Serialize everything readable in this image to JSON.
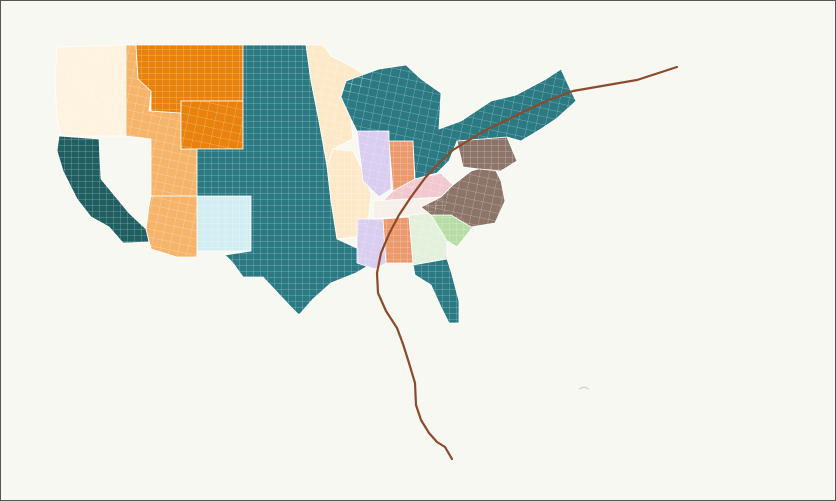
{
  "map": {
    "background": "#f7f8f2",
    "border_color": "#555555",
    "track_color": "#8b4a2b",
    "palette": {
      "teal": "#2b7a83",
      "dark_teal": "#1f5f62",
      "orange": "#e8820d",
      "light_orange": "#f5b46a",
      "peach": "#fde9c8",
      "cream": "#fef3df",
      "light_blue": "#d3eef2",
      "lavender": "#d9cdf0",
      "salmon": "#eb9a6e",
      "pink": "#f2c8cf",
      "light_green": "#b8dca5",
      "pale_green": "#e3f0dc",
      "brown": "#8c7468",
      "off_white": "#f6f0e8"
    },
    "regions": [
      {
        "name": "washington-oregon",
        "color": "cream"
      },
      {
        "name": "california-nevada-west",
        "color": "dark_teal"
      },
      {
        "name": "idaho-utah",
        "color": "light_orange"
      },
      {
        "name": "montana",
        "color": "orange"
      },
      {
        "name": "wyoming",
        "color": "orange"
      },
      {
        "name": "colorado",
        "color": "light_blue"
      },
      {
        "name": "arizona-new-mexico",
        "color": "light_orange"
      },
      {
        "name": "great-plains-texas",
        "color": "teal"
      },
      {
        "name": "minnesota-iowa",
        "color": "peach"
      },
      {
        "name": "missouri-arkansas",
        "color": "peach"
      },
      {
        "name": "illinois",
        "color": "lavender"
      },
      {
        "name": "indiana",
        "color": "salmon"
      },
      {
        "name": "kentucky",
        "color": "pink"
      },
      {
        "name": "tennessee",
        "color": "off_white"
      },
      {
        "name": "mississippi",
        "color": "lavender"
      },
      {
        "name": "alabama",
        "color": "salmon"
      },
      {
        "name": "georgia",
        "color": "pale_green"
      },
      {
        "name": "south-carolina",
        "color": "light_green"
      },
      {
        "name": "virginia-carolinas",
        "color": "brown"
      },
      {
        "name": "pennsylvania",
        "color": "brown"
      },
      {
        "name": "great-lakes-northeast-south",
        "color": "teal"
      },
      {
        "name": "florida",
        "color": "teal"
      }
    ],
    "storm_track": {
      "name": "storm-track"
    }
  }
}
